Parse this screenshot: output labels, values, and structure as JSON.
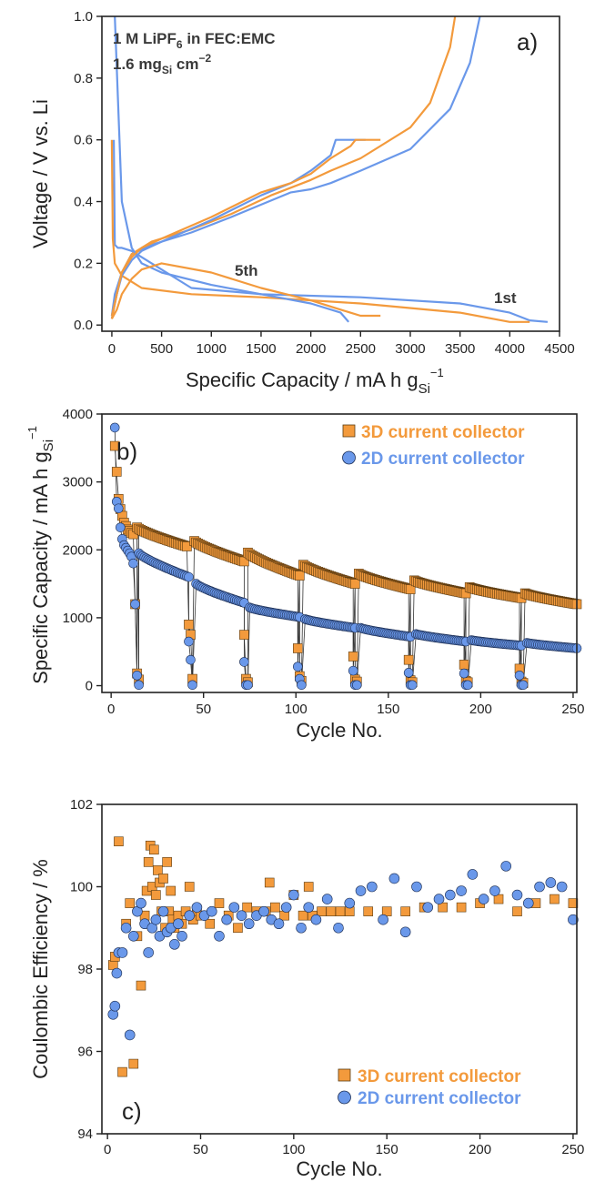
{
  "colors": {
    "orange": "#F39A3C",
    "blue": "#6A98EA",
    "axis": "#222222",
    "text_dark": "#3a3a3a"
  },
  "chart_data": [
    {
      "panel": "a",
      "type": "line",
      "panel_label": "a)",
      "xlabel": "Specific Capacity / mA h g",
      "xlabel_sub": "Si",
      "xlabel_sup": "−1",
      "ylabel": "Voltage / V vs. Li",
      "xlim": [
        -100,
        4500
      ],
      "ylim": [
        -0.02,
        1.0
      ],
      "xticks": [
        0,
        500,
        1000,
        1500,
        2000,
        2500,
        3000,
        3500,
        4000,
        4500
      ],
      "yticks": [
        0.0,
        0.2,
        0.4,
        0.6,
        0.8,
        1.0
      ],
      "ytick_labels": [
        "0.0",
        "0.2",
        "0.4",
        "0.6",
        "0.8",
        "1.0"
      ],
      "annotations": [
        {
          "text": "1 M LiPF",
          "sub": "6",
          "rest": " in FEC:EMC"
        },
        {
          "text": "1.6 mg",
          "sub": "Si",
          "rest": " cm",
          "sup": "−2"
        },
        {
          "text": "5th"
        },
        {
          "text": "1st"
        }
      ],
      "series": [
        {
          "color_key": "blue",
          "x": [
            20,
            30,
            60,
            100,
            200,
            400,
            800,
            1500,
            2500,
            3500,
            4000,
            4200,
            4380
          ],
          "y": [
            0.6,
            0.26,
            0.25,
            0.25,
            0.24,
            0.2,
            0.12,
            0.1,
            0.09,
            0.07,
            0.04,
            0.015,
            0.01
          ]
        },
        {
          "color_key": "blue",
          "x": [
            0,
            30,
            100,
            200,
            400,
            800,
            1200,
            1500,
            1800,
            2000,
            2200,
            2500,
            3000,
            3400,
            3600,
            3700
          ],
          "y": [
            0.03,
            0.1,
            0.17,
            0.23,
            0.26,
            0.3,
            0.35,
            0.39,
            0.43,
            0.44,
            0.46,
            0.5,
            0.57,
            0.7,
            0.85,
            1.0
          ]
        },
        {
          "color_key": "orange",
          "x": [
            0,
            10,
            30,
            100,
            200,
            300,
            800,
            1500,
            2500,
            3500,
            4000,
            4200
          ],
          "y": [
            0.6,
            0.28,
            0.2,
            0.16,
            0.14,
            0.12,
            0.1,
            0.09,
            0.07,
            0.04,
            0.01,
            0.01
          ]
        },
        {
          "color_key": "orange",
          "x": [
            0,
            50,
            100,
            200,
            400,
            800,
            1200,
            1600,
            2000,
            2200,
            2500,
            3000,
            3200,
            3400,
            3450
          ],
          "y": [
            0.03,
            0.1,
            0.17,
            0.23,
            0.27,
            0.31,
            0.36,
            0.42,
            0.47,
            0.5,
            0.54,
            0.64,
            0.72,
            0.9,
            1.0
          ]
        },
        {
          "color_key": "blue",
          "x": [
            30,
            100,
            200,
            300,
            500,
            1000,
            1500,
            2000,
            2300,
            2380
          ],
          "y": [
            1.0,
            0.4,
            0.25,
            0.2,
            0.17,
            0.13,
            0.1,
            0.07,
            0.04,
            0.01
          ]
        },
        {
          "color_key": "blue",
          "x": [
            0,
            50,
            100,
            200,
            300,
            500,
            1000,
            1500,
            1800,
            2000,
            2200,
            2250,
            2300,
            2550
          ],
          "y": [
            0.02,
            0.1,
            0.16,
            0.21,
            0.24,
            0.27,
            0.34,
            0.42,
            0.46,
            0.5,
            0.55,
            0.6,
            0.6,
            0.6
          ]
        },
        {
          "color_key": "orange",
          "x": [
            0,
            50,
            100,
            200,
            300,
            500,
            1000,
            1500,
            2000,
            2300,
            2500,
            2700
          ],
          "y": [
            0.02,
            0.05,
            0.1,
            0.15,
            0.18,
            0.2,
            0.17,
            0.12,
            0.08,
            0.05,
            0.03,
            0.03
          ]
        },
        {
          "color_key": "orange",
          "x": [
            0,
            50,
            100,
            200,
            300,
            500,
            1000,
            1500,
            1800,
            2000,
            2200,
            2400,
            2450,
            2500,
            2700
          ],
          "y": [
            0.02,
            0.1,
            0.17,
            0.22,
            0.25,
            0.28,
            0.35,
            0.43,
            0.46,
            0.49,
            0.54,
            0.58,
            0.6,
            0.6,
            0.6
          ]
        }
      ]
    },
    {
      "panel": "b",
      "type": "scatter",
      "panel_label": "b)",
      "xlabel": "Cycle No.",
      "ylabel": "Specific Capacity / mA h g",
      "ylabel_sub": "Si",
      "ylabel_sup": "−1",
      "xlim": [
        -5,
        252
      ],
      "ylim": [
        -100,
        4000
      ],
      "xticks": [
        0,
        50,
        100,
        150,
        200,
        250
      ],
      "yticks": [
        0,
        1000,
        2000,
        3000,
        4000
      ],
      "legend": {
        "position": "top-right",
        "entries": [
          "3D current collector",
          "2D current collector"
        ]
      },
      "series": [
        {
          "name": "3D current collector",
          "marker": "square",
          "color_key": "orange",
          "start": {
            "x": [
              2,
              3,
              4,
              5,
              6,
              7,
              8,
              9,
              10,
              11,
              12
            ],
            "y": [
              3530,
              3150,
              2750,
              2600,
              2500,
              2400,
              2350,
              2300,
              2280,
              2250,
              2230
            ]
          },
          "segments": [
            [
              14,
              41,
              2330,
              2050
            ],
            [
              45,
              72,
              2130,
              1830
            ],
            [
              74,
              102,
              1960,
              1620
            ],
            [
              104,
              132,
              1780,
              1500
            ],
            [
              134,
              162,
              1650,
              1420
            ],
            [
              164,
              192,
              1550,
              1360
            ],
            [
              194,
              222,
              1450,
              1290
            ],
            [
              224,
              252,
              1360,
              1200
            ]
          ],
          "dips": [
            {
              "x": [
                13,
                14,
                15
              ],
              "y": [
                1200,
                180,
                90
              ]
            },
            {
              "x": [
                42,
                43,
                44
              ],
              "y": [
                900,
                750,
                100
              ]
            },
            {
              "x": [
                72,
                73,
                74
              ],
              "y": [
                750,
                100,
                50
              ]
            },
            {
              "x": [
                101,
                102,
                103
              ],
              "y": [
                550,
                140,
                70
              ]
            },
            {
              "x": [
                131,
                132,
                133
              ],
              "y": [
                430,
                90,
                60
              ]
            },
            {
              "x": [
                161,
                162,
                163
              ],
              "y": [
                380,
                80,
                50
              ]
            },
            {
              "x": [
                191,
                192,
                193
              ],
              "y": [
                310,
                70,
                50
              ]
            },
            {
              "x": [
                221,
                222,
                223
              ],
              "y": [
                250,
                60,
                40
              ]
            }
          ]
        },
        {
          "name": "2D current collector",
          "marker": "circle",
          "color_key": "blue",
          "start": {
            "x": [
              2,
              3,
              4,
              5,
              6,
              7,
              8,
              9,
              10,
              11,
              12
            ],
            "y": [
              3800,
              2710,
              2610,
              2330,
              2160,
              2070,
              2030,
              1990,
              1950,
              1900,
              1800
            ]
          },
          "segments": [
            [
              15,
              42,
              1950,
              1600
            ],
            [
              46,
              72,
              1500,
              1220
            ],
            [
              75,
              102,
              1150,
              1010
            ],
            [
              105,
              132,
              980,
              850
            ],
            [
              135,
              162,
              850,
              720
            ],
            [
              165,
              192,
              760,
              650
            ],
            [
              195,
              222,
              670,
              590
            ],
            [
              225,
              252,
              630,
              550
            ]
          ],
          "dips": [
            {
              "x": [
                13,
                14,
                15
              ],
              "y": [
                1200,
                150,
                10
              ]
            },
            {
              "x": [
                42,
                43,
                44
              ],
              "y": [
                650,
                380,
                10
              ]
            },
            {
              "x": [
                72,
                73,
                74
              ],
              "y": [
                350,
                10,
                10
              ]
            },
            {
              "x": [
                101,
                102,
                103
              ],
              "y": [
                280,
                100,
                10
              ]
            },
            {
              "x": [
                131,
                132,
                133
              ],
              "y": [
                220,
                10,
                10
              ]
            },
            {
              "x": [
                161,
                162,
                163
              ],
              "y": [
                190,
                10,
                10
              ]
            },
            {
              "x": [
                191,
                192,
                193
              ],
              "y": [
                180,
                10,
                10
              ]
            },
            {
              "x": [
                221,
                222,
                223
              ],
              "y": [
                150,
                10,
                10
              ]
            }
          ]
        }
      ]
    },
    {
      "panel": "c",
      "type": "scatter",
      "panel_label": "c)",
      "xlabel": "Cycle No.",
      "ylabel": "Coulombic Efficiency / %",
      "xlim": [
        -3,
        252
      ],
      "ylim": [
        94,
        102
      ],
      "xticks": [
        0,
        50,
        100,
        150,
        200,
        250
      ],
      "yticks": [
        94,
        96,
        98,
        100,
        102
      ],
      "legend": {
        "position": "bottom-right",
        "entries": [
          "3D current collector",
          "2D current collector"
        ]
      },
      "series": [
        {
          "name": "3D current collector",
          "marker": "square",
          "color_key": "orange",
          "x": [
            3,
            4,
            6,
            8,
            10,
            12,
            14,
            16,
            18,
            20,
            21,
            22,
            23,
            24,
            25,
            26,
            27,
            28,
            29,
            30,
            31,
            32,
            33,
            34,
            35,
            36,
            38,
            40,
            42,
            44,
            46,
            48,
            50,
            55,
            60,
            65,
            70,
            75,
            80,
            85,
            87,
            90,
            95,
            100,
            105,
            108,
            110,
            115,
            120,
            125,
            130,
            140,
            150,
            160,
            170,
            180,
            190,
            200,
            210,
            220,
            230,
            240,
            250
          ],
          "y": [
            98.1,
            98.3,
            101.1,
            95.5,
            99.1,
            99.6,
            95.7,
            98.8,
            97.6,
            99.3,
            99.9,
            100.6,
            101.0,
            100.0,
            100.9,
            99.8,
            100.4,
            100.1,
            99.4,
            100.2,
            99.0,
            100.6,
            99.4,
            99.9,
            99.2,
            99.0,
            99.3,
            99.1,
            99.4,
            100.0,
            99.2,
            99.4,
            99.3,
            99.1,
            99.6,
            99.3,
            99.0,
            99.5,
            99.4,
            99.4,
            100.1,
            99.5,
            99.3,
            99.8,
            99.3,
            100.0,
            99.3,
            99.4,
            99.4,
            99.4,
            99.4,
            99.4,
            99.4,
            99.4,
            99.5,
            99.5,
            99.5,
            99.6,
            99.7,
            99.4,
            99.6,
            99.7,
            99.6
          ]
        },
        {
          "name": "2D current collector",
          "marker": "circle",
          "color_key": "blue",
          "x": [
            3,
            4,
            5,
            6,
            8,
            10,
            12,
            14,
            16,
            18,
            20,
            22,
            24,
            26,
            28,
            30,
            32,
            34,
            36,
            38,
            40,
            44,
            48,
            52,
            56,
            60,
            64,
            68,
            72,
            76,
            80,
            84,
            88,
            92,
            96,
            100,
            104,
            108,
            112,
            118,
            124,
            130,
            136,
            142,
            148,
            154,
            160,
            166,
            172,
            178,
            184,
            190,
            196,
            202,
            208,
            214,
            220,
            226,
            232,
            238,
            244,
            250
          ],
          "y": [
            96.9,
            97.1,
            97.9,
            98.4,
            98.4,
            99.0,
            96.4,
            98.8,
            99.4,
            99.6,
            99.1,
            98.4,
            99.0,
            99.2,
            98.8,
            99.4,
            98.9,
            99.0,
            98.6,
            99.1,
            98.8,
            99.3,
            99.5,
            99.3,
            99.4,
            98.8,
            99.2,
            99.5,
            99.3,
            99.1,
            99.3,
            99.4,
            99.2,
            99.1,
            99.5,
            99.8,
            99.0,
            99.5,
            99.2,
            99.7,
            99.0,
            99.6,
            99.9,
            100.0,
            99.2,
            100.2,
            98.9,
            100.0,
            99.5,
            99.7,
            99.8,
            99.9,
            100.3,
            99.7,
            99.9,
            100.5,
            99.8,
            99.6,
            100.0,
            100.1,
            100.0,
            99.2
          ]
        }
      ]
    }
  ]
}
